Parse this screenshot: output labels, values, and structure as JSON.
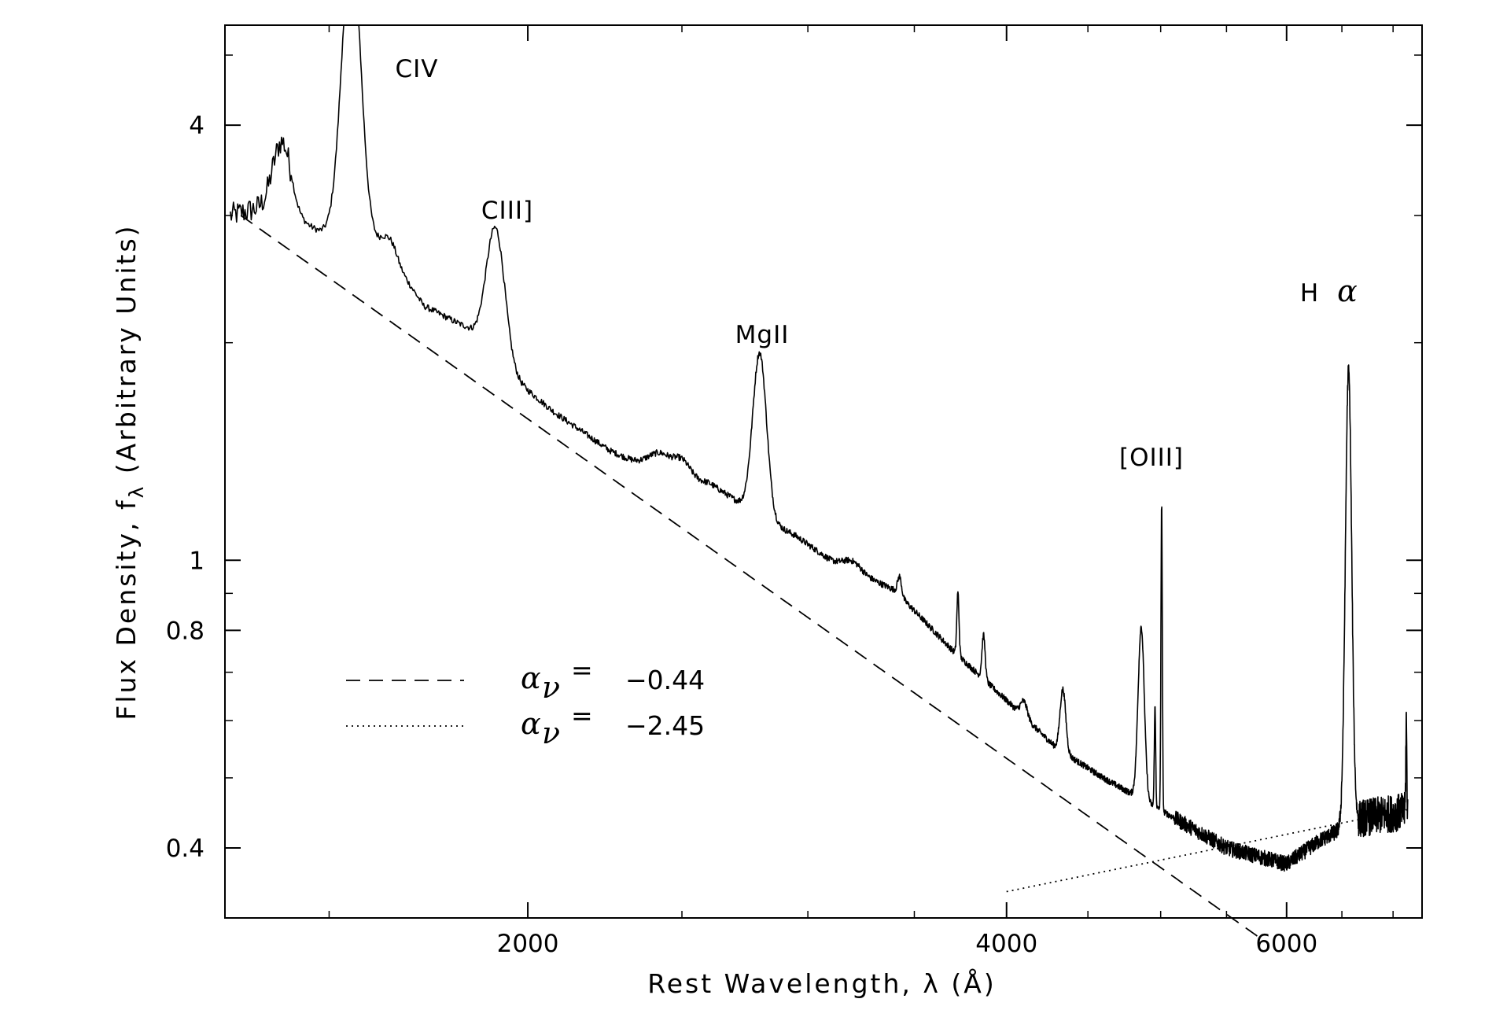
{
  "chart_data": {
    "type": "line",
    "xlabel_main": "Rest Wavelength, λ (Å)",
    "ylabel_main": "Flux Density, f",
    "ylabel_sub": "λ",
    "ylabel_tail": " (Arbitrary Units)",
    "x_scale": "log",
    "y_scale": "log",
    "xlim": [
      1290,
      7300
    ],
    "ylim": [
      0.32,
      5.5
    ],
    "x_ticks": [
      2000,
      4000,
      6000
    ],
    "x_tick_labels": [
      "2000",
      "4000",
      "6000"
    ],
    "y_ticks": [
      0.4,
      0.8,
      1,
      4
    ],
    "y_tick_labels": [
      "0.4",
      "0.8",
      "1",
      "4"
    ],
    "annotations": [
      {
        "label": "CIV",
        "x": 1549
      },
      {
        "label": "CIII]",
        "x": 1909
      },
      {
        "label": "MgII",
        "x": 2798
      },
      {
        "label": "[OIII]",
        "x": 4959
      },
      {
        "label": "H",
        "x": 6563,
        "greek": "α"
      }
    ],
    "legend": {
      "placement": "lower-left",
      "entries": [
        {
          "style": "dashed",
          "symbol": "α",
          "subscript": "ν",
          "eq": "=",
          "value": "−0.44"
        },
        {
          "style": "dotted",
          "symbol": "α",
          "subscript": "ν",
          "eq": "=",
          "value": "−2.45"
        }
      ]
    },
    "powerlaws": [
      {
        "style": "dashed",
        "alpha_nu": -0.44,
        "x_range": [
          1320,
          5800
        ],
        "anchor": [
          1320,
          3.0
        ]
      },
      {
        "style": "dotted",
        "alpha_nu": -2.45,
        "x_range": [
          4000,
          7150
        ],
        "anchor": [
          4000,
          0.348
        ]
      }
    ],
    "spectrum": {
      "continuum": [
        [
          1300,
          3.0
        ],
        [
          1380,
          3.1
        ],
        [
          1480,
          2.85
        ],
        [
          1620,
          2.75
        ],
        [
          1720,
          2.25
        ],
        [
          1830,
          2.1
        ],
        [
          1950,
          1.8
        ],
        [
          2080,
          1.6
        ],
        [
          2250,
          1.42
        ],
        [
          2400,
          1.33
        ],
        [
          2600,
          1.28
        ],
        [
          2800,
          1.15
        ],
        [
          2950,
          1.08
        ],
        [
          3100,
          1.0
        ],
        [
          3400,
          0.91
        ],
        [
          3700,
          0.75
        ],
        [
          4000,
          0.64
        ],
        [
          4300,
          0.55
        ],
        [
          4600,
          0.5
        ],
        [
          5100,
          0.44
        ],
        [
          5500,
          0.4
        ],
        [
          6000,
          0.38
        ],
        [
          6300,
          0.41
        ],
        [
          6700,
          0.44
        ],
        [
          7150,
          0.45
        ]
      ],
      "lines": [
        {
          "x": 1402,
          "amp": 0.22,
          "w": 18
        },
        {
          "x": 1549,
          "amp": 0.95,
          "w": 21
        },
        {
          "x": 1640,
          "amp": 0.05,
          "w": 15
        },
        {
          "x": 1909,
          "amp": 0.42,
          "w": 26
        },
        {
          "x": 2420,
          "amp": 0.06,
          "w": 40
        },
        {
          "x": 2500,
          "amp": 0.05,
          "w": 30
        },
        {
          "x": 2798,
          "amp": 0.52,
          "w": 28
        },
        {
          "x": 3200,
          "amp": 0.03,
          "w": 40
        },
        {
          "x": 3426,
          "amp": 0.06,
          "w": 10
        },
        {
          "x": 3728,
          "amp": 0.2,
          "w": 6
        },
        {
          "x": 3869,
          "amp": 0.14,
          "w": 9
        },
        {
          "x": 4102,
          "amp": 0.05,
          "w": 20
        },
        {
          "x": 4340,
          "amp": 0.2,
          "w": 18
        },
        {
          "x": 4861,
          "amp": 0.55,
          "w": 22
        },
        {
          "x": 4959,
          "amp": 0.32,
          "w": 5
        },
        {
          "x": 5007,
          "amp": 0.98,
          "w": 5
        },
        {
          "x": 6563,
          "amp": 1.45,
          "w": 30
        },
        {
          "x": 7135,
          "amp": 0.3,
          "w": 5
        }
      ],
      "noise": 0.01
    }
  }
}
